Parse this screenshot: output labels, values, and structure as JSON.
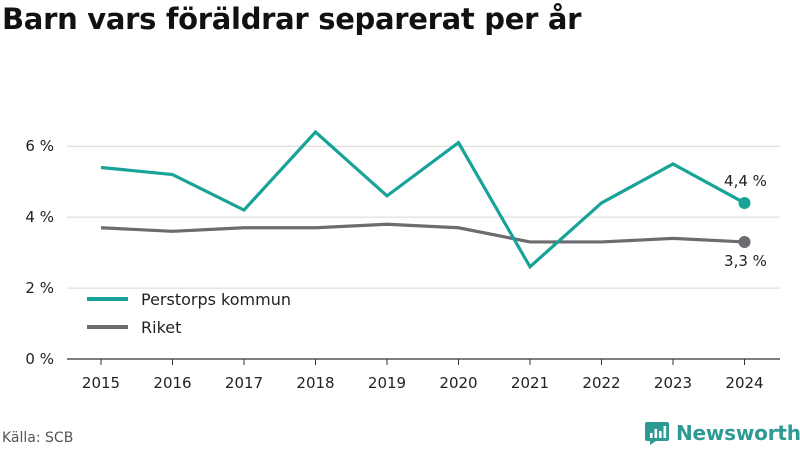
{
  "title": "Barn vars föräldrar separerat per år",
  "source": "Källa: SCB",
  "brand": {
    "name": "Newsworthy",
    "color": "#2e9a94",
    "icon": "newsworthy-logo-icon"
  },
  "chart_data": {
    "type": "line",
    "x": [
      "2015",
      "2016",
      "2017",
      "2018",
      "2019",
      "2020",
      "2021",
      "2022",
      "2023",
      "2024"
    ],
    "ylim": [
      0,
      7.5
    ],
    "yticks": [
      0,
      2,
      4,
      6
    ],
    "ytick_labels": [
      "0 %",
      "2 %",
      "4 %",
      "6 %"
    ],
    "grid": true,
    "legend_position": "bottom-left",
    "series": [
      {
        "name": "Perstorps kommun",
        "color": "#17a398",
        "values": [
          5.4,
          5.2,
          4.2,
          6.4,
          4.6,
          6.1,
          2.6,
          4.4,
          5.5,
          4.4
        ],
        "end_label": "4,4 %"
      },
      {
        "name": "Riket",
        "color": "#6d6b70",
        "values": [
          3.7,
          3.6,
          3.7,
          3.7,
          3.8,
          3.7,
          3.3,
          3.3,
          3.4,
          3.3
        ],
        "end_label": "3,3 %"
      }
    ]
  }
}
